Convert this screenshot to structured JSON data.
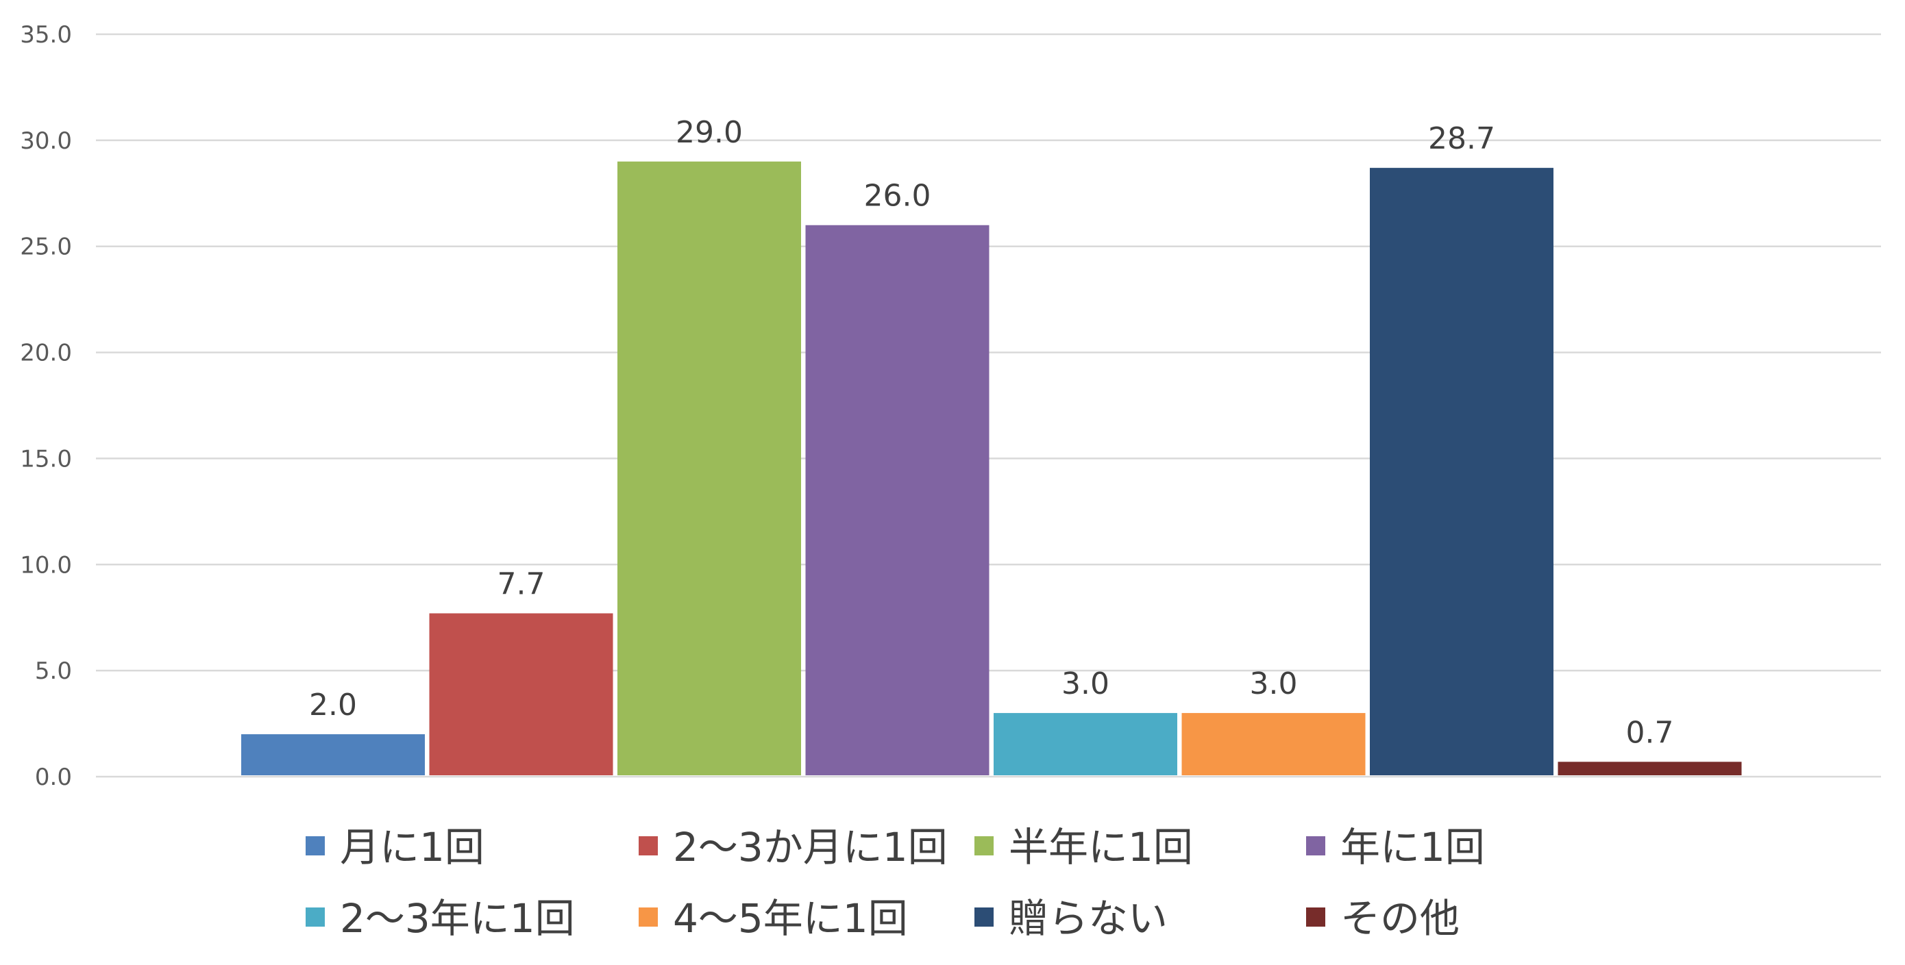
{
  "chart_data": {
    "type": "bar",
    "title": "",
    "xlabel": "",
    "ylabel": "",
    "ylim": [
      0,
      35
    ],
    "yticks": [
      "0.0",
      "5.0",
      "10.0",
      "15.0",
      "20.0",
      "25.0",
      "30.0",
      "35.0"
    ],
    "grid": true,
    "legend_position": "bottom",
    "series": [
      {
        "name": "月に1回",
        "value": 2.0,
        "label": "2.0",
        "color": "#4F81BD"
      },
      {
        "name": "2〜3か月に1回",
        "value": 7.7,
        "label": "7.7",
        "color": "#C0504D"
      },
      {
        "name": "半年に1回",
        "value": 29.0,
        "label": "29.0",
        "color": "#9BBB59"
      },
      {
        "name": "年に1回",
        "value": 26.0,
        "label": "26.0",
        "color": "#8064A2"
      },
      {
        "name": "2〜3年に1回",
        "value": 3.0,
        "label": "3.0",
        "color": "#4BACC6"
      },
      {
        "name": "4〜5年に1回",
        "value": 3.0,
        "label": "3.0",
        "color": "#F79646"
      },
      {
        "name": "贈らない",
        "value": 28.7,
        "label": "28.7",
        "color": "#2C4D75"
      },
      {
        "name": "その他",
        "value": 0.7,
        "label": "0.7",
        "color": "#772C2A"
      }
    ]
  }
}
